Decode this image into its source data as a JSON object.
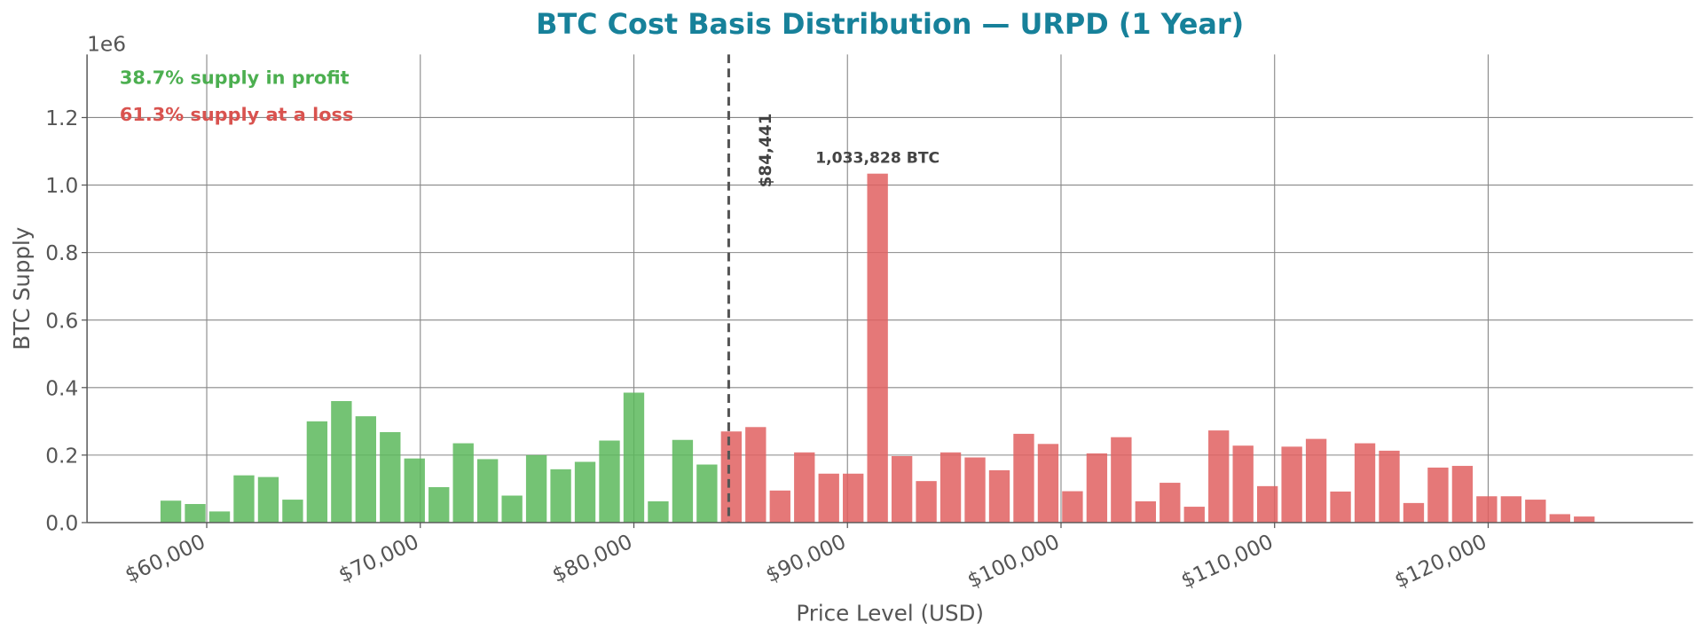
{
  "chart_data": {
    "type": "bar",
    "title": "BTC Cost Basis Distribution — URPD (1 Year)",
    "xlabel": "Price Level (USD)",
    "ylabel": "BTC Supply",
    "y_offset_label": "1e6",
    "x": [
      58320,
      59461,
      60602,
      61743,
      62884,
      64025,
      65166,
      66307,
      67448,
      68589,
      69730,
      70871,
      72012,
      73153,
      74294,
      75435,
      76576,
      77717,
      78858,
      79999,
      81140,
      82281,
      83422,
      84563,
      85704,
      86845,
      87986,
      89127,
      90268,
      91409,
      92550,
      93691,
      94832,
      95973,
      97114,
      98255,
      99396,
      100537,
      101678,
      102819,
      103960,
      105101,
      106242,
      107383,
      108524,
      109665,
      110806,
      111947,
      113088,
      114229,
      115370,
      116511,
      117652,
      118793,
      119934,
      121075,
      122216,
      123357,
      124498
    ],
    "values": [
      0.065,
      0.055,
      0.033,
      0.14,
      0.135,
      0.068,
      0.3,
      0.36,
      0.315,
      0.268,
      0.19,
      0.105,
      0.235,
      0.188,
      0.08,
      0.2,
      0.158,
      0.18,
      0.243,
      0.385,
      0.063,
      0.245,
      0.172,
      0.27,
      0.283,
      0.095,
      0.208,
      0.145,
      0.145,
      1.033828,
      0.197,
      0.123,
      0.208,
      0.193,
      0.155,
      0.263,
      0.233,
      0.093,
      0.205,
      0.253,
      0.063,
      0.118,
      0.047,
      0.273,
      0.228,
      0.108,
      0.225,
      0.248,
      0.092,
      0.235,
      0.213,
      0.058,
      0.163,
      0.168,
      0.078,
      0.078,
      0.068,
      0.025,
      0.018
    ],
    "value_labels": [
      null,
      null,
      null,
      null,
      null,
      null,
      null,
      null,
      null,
      null,
      null,
      null,
      null,
      null,
      null,
      null,
      null,
      null,
      null,
      null,
      null,
      null,
      null,
      null,
      null,
      null,
      null,
      null,
      null,
      "1,033,828 BTC",
      null,
      null,
      null,
      null,
      null,
      null,
      null,
      null,
      null,
      null,
      null,
      null,
      null,
      null,
      null,
      null,
      null,
      null,
      null,
      null,
      null,
      null,
      null,
      null,
      null,
      null,
      null,
      null,
      null
    ],
    "profit_color": "#5cb85c",
    "loss_color": "#e06060",
    "price_line": {
      "value": 84441,
      "label": "$84,441"
    },
    "annotations": [
      {
        "text": "38.7% supply in profit",
        "color": "#4caf50"
      },
      {
        "text": "61.3% supply at a loss",
        "color": "#d9534f"
      }
    ],
    "xlim": [
      54396,
      129588
    ],
    "ylim": [
      0,
      1.387
    ],
    "xticks": [
      {
        "value": 60000,
        "label": "$60,000"
      },
      {
        "value": 70000,
        "label": "$70,000"
      },
      {
        "value": 80000,
        "label": "$80,000"
      },
      {
        "value": 90000,
        "label": "$90,000"
      },
      {
        "value": 100000,
        "label": "$100,000"
      },
      {
        "value": 110000,
        "label": "$110,000"
      },
      {
        "value": 120000,
        "label": "$120,000"
      }
    ],
    "yticks": [
      {
        "value": 0,
        "label": "0.0"
      },
      0.2,
      0.4,
      0.6,
      0.8,
      {
        "value": 1,
        "label": "1.0"
      },
      1.2
    ],
    "grid": true
  }
}
